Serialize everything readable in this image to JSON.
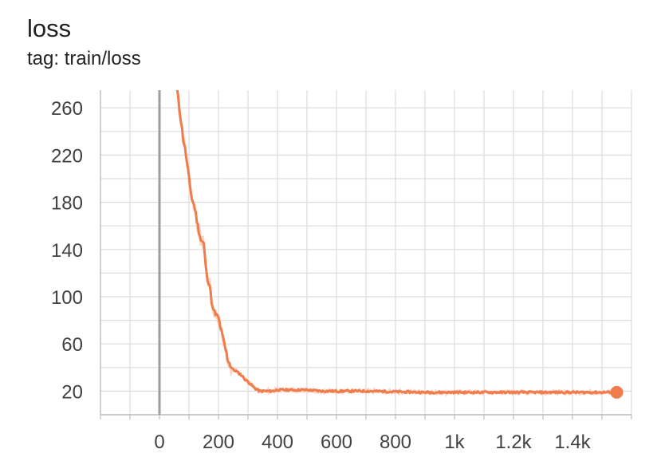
{
  "header": {
    "title": "loss",
    "subtitle": "tag: train/loss"
  },
  "chart_data": {
    "type": "line",
    "title": "loss",
    "subtitle": "tag: train/loss",
    "xlabel": "",
    "ylabel": "",
    "xlim": [
      -200,
      1600
    ],
    "ylim": [
      0,
      275
    ],
    "x_ticks": [
      {
        "value": 0,
        "label": "0"
      },
      {
        "value": 200,
        "label": "200"
      },
      {
        "value": 400,
        "label": "400"
      },
      {
        "value": 600,
        "label": "600"
      },
      {
        "value": 800,
        "label": "800"
      },
      {
        "value": 1000,
        "label": "1k"
      },
      {
        "value": 1200,
        "label": "1.2k"
      },
      {
        "value": 1400,
        "label": "1.4k"
      }
    ],
    "y_ticks": [
      {
        "value": 20,
        "label": "20"
      },
      {
        "value": 60,
        "label": "60"
      },
      {
        "value": 100,
        "label": "100"
      },
      {
        "value": 140,
        "label": "140"
      },
      {
        "value": 180,
        "label": "180"
      },
      {
        "value": 220,
        "label": "220"
      },
      {
        "value": 260,
        "label": "260"
      }
    ],
    "grid": true,
    "line_color": "#f07c4c",
    "raw_color": "#fbd6c6",
    "series": [
      {
        "x": [
          60,
          70,
          80,
          90,
          100,
          110,
          120,
          130,
          140,
          150,
          160,
          170,
          180,
          190,
          200,
          210,
          220,
          230,
          240,
          250,
          260,
          270,
          280,
          290,
          300,
          320,
          340,
          360,
          380,
          400,
          450,
          500,
          550,
          600,
          650,
          700,
          800,
          900,
          1000,
          1100,
          1200,
          1300,
          1400,
          1500,
          1550
        ],
        "y": [
          275,
          255,
          235,
          220,
          200,
          183,
          175,
          160,
          148,
          145,
          118,
          110,
          90,
          85,
          82,
          70,
          60,
          48,
          42,
          38,
          37,
          35,
          33,
          30,
          28,
          23,
          20,
          20,
          20,
          21,
          21,
          21,
          20,
          20,
          20,
          20,
          19.5,
          19,
          19,
          19,
          19,
          19,
          19,
          19,
          19
        ]
      }
    ]
  }
}
